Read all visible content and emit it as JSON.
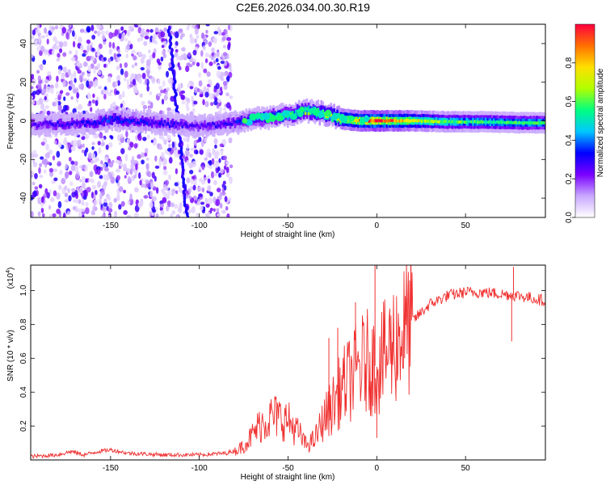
{
  "title": "C2E6.2026.034.00.30.R19",
  "spectrogram": {
    "type": "heatmap",
    "xlabel": "Height of straight line (km)",
    "ylabel": "Frequency (Hz)",
    "xlim": [
      -195,
      95
    ],
    "ylim": [
      -50,
      50
    ],
    "xticks": [
      -150,
      -100,
      -50,
      0,
      50
    ],
    "yticks": [
      -40,
      -20,
      0,
      20,
      40
    ],
    "noise_region_x": [
      -195,
      -82
    ],
    "slanted_track": {
      "x": [
        -117,
        -107
      ],
      "y": [
        48,
        -50
      ]
    },
    "ridge": [
      {
        "x": -195,
        "y": -2,
        "amp": 0.25
      },
      {
        "x": -160,
        "y": -1,
        "amp": 0.3
      },
      {
        "x": -150,
        "y": 1,
        "amp": 0.35
      },
      {
        "x": -100,
        "y": -3,
        "amp": 0.25
      },
      {
        "x": -80,
        "y": -1,
        "amp": 0.3
      },
      {
        "x": -70,
        "y": 1,
        "amp": 0.4
      },
      {
        "x": -60,
        "y": 2,
        "amp": 0.45
      },
      {
        "x": -50,
        "y": 3,
        "amp": 0.55
      },
      {
        "x": -40,
        "y": 5,
        "amp": 0.6
      },
      {
        "x": -30,
        "y": 4,
        "amp": 0.65
      },
      {
        "x": -20,
        "y": 1,
        "amp": 0.75
      },
      {
        "x": -10,
        "y": 0,
        "amp": 0.85
      },
      {
        "x": 0,
        "y": 0,
        "amp": 0.95
      },
      {
        "x": 20,
        "y": 0,
        "amp": 0.75
      },
      {
        "x": 40,
        "y": -0.5,
        "amp": 0.6
      },
      {
        "x": 60,
        "y": -0.5,
        "amp": 0.55
      },
      {
        "x": 80,
        "y": -1,
        "amp": 0.55
      },
      {
        "x": 95,
        "y": -1,
        "amp": 0.55
      }
    ],
    "colorbar": {
      "label": "Normalized spectral amplitude",
      "ticks": [
        "0.0",
        "0.2",
        "0.4",
        "0.6",
        "0.8"
      ],
      "range": [
        0,
        1
      ],
      "colors": [
        "#ffffff",
        "#c9a8ff",
        "#7a00ff",
        "#0000ff",
        "#00c8ff",
        "#00ff80",
        "#b0ff00",
        "#ffe000",
        "#ff7000",
        "#ff0040"
      ]
    }
  },
  "snr": {
    "type": "line",
    "xlabel": "Height of straight line (km)",
    "ylabel": "SNR (10 * v/v)",
    "multiplier": "(x10",
    "multiplier_exp": "4",
    "multiplier_close": ")",
    "xlim": [
      -195,
      95
    ],
    "ylim": [
      0,
      1.15
    ],
    "xticks": [
      -150,
      -100,
      -50,
      0,
      50
    ],
    "yticks": [
      "0.2",
      "0.4",
      "0.6",
      "0.8",
      "1.0"
    ],
    "color": "#f03030",
    "series": [
      {
        "x": -195,
        "y": 0.02
      },
      {
        "x": -180,
        "y": 0.03
      },
      {
        "x": -172,
        "y": 0.05
      },
      {
        "x": -165,
        "y": 0.03
      },
      {
        "x": -157,
        "y": 0.05
      },
      {
        "x": -150,
        "y": 0.06
      },
      {
        "x": -140,
        "y": 0.04
      },
      {
        "x": -120,
        "y": 0.03
      },
      {
        "x": -100,
        "y": 0.03
      },
      {
        "x": -85,
        "y": 0.04
      },
      {
        "x": -78,
        "y": 0.06
      },
      {
        "x": -72,
        "y": 0.12
      },
      {
        "x": -65,
        "y": 0.22
      },
      {
        "x": -58,
        "y": 0.26
      },
      {
        "x": -50,
        "y": 0.23
      },
      {
        "x": -44,
        "y": 0.16
      },
      {
        "x": -40,
        "y": 0.09
      },
      {
        "x": -35,
        "y": 0.12
      },
      {
        "x": -30,
        "y": 0.24
      },
      {
        "x": -25,
        "y": 0.32
      },
      {
        "x": -20,
        "y": 0.42
      },
      {
        "x": -15,
        "y": 0.48
      },
      {
        "x": -10,
        "y": 0.55
      },
      {
        "x": -5,
        "y": 0.58
      },
      {
        "x": 0,
        "y": 0.55
      },
      {
        "x": 5,
        "y": 0.62
      },
      {
        "x": 10,
        "y": 0.7
      },
      {
        "x": 15,
        "y": 0.76
      },
      {
        "x": 20,
        "y": 0.82
      },
      {
        "x": 25,
        "y": 0.87
      },
      {
        "x": 30,
        "y": 0.92
      },
      {
        "x": 40,
        "y": 0.97
      },
      {
        "x": 50,
        "y": 0.99
      },
      {
        "x": 60,
        "y": 0.99
      },
      {
        "x": 70,
        "y": 0.98
      },
      {
        "x": 80,
        "y": 0.97
      },
      {
        "x": 90,
        "y": 0.95
      },
      {
        "x": 95,
        "y": 0.94
      }
    ],
    "spikes": [
      {
        "x": -27,
        "y": 0.72
      },
      {
        "x": -22,
        "y": 0.78
      },
      {
        "x": -12,
        "y": 0.93
      },
      {
        "x": -1,
        "y": 1.15
      },
      {
        "x": 0,
        "y": 0.13
      },
      {
        "x": 77,
        "y": 1.14
      },
      {
        "x": 76,
        "y": 0.7
      }
    ]
  }
}
